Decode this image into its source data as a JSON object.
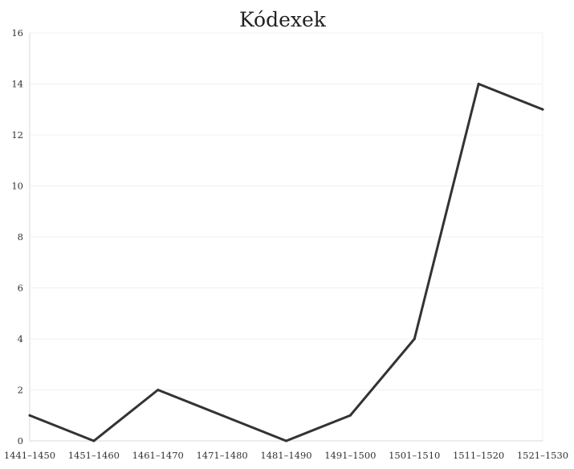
{
  "chart_data": {
    "type": "line",
    "title": "Kódexek",
    "xlabel": "",
    "ylabel": "",
    "categories": [
      "1441–1450",
      "1451–1460",
      "1461–1470",
      "1471–1480",
      "1481–1490",
      "1491–1500",
      "1501–1510",
      "1511–1520",
      "1521–1530"
    ],
    "series": [
      {
        "values": [
          1,
          0,
          2,
          1,
          0,
          1,
          4,
          14,
          13
        ],
        "color": "#333333"
      }
    ],
    "ylim": [
      0,
      16
    ],
    "yticks": [
      0,
      2,
      4,
      6,
      8,
      10,
      12,
      14,
      16
    ],
    "grid": true,
    "legend": "none"
  }
}
